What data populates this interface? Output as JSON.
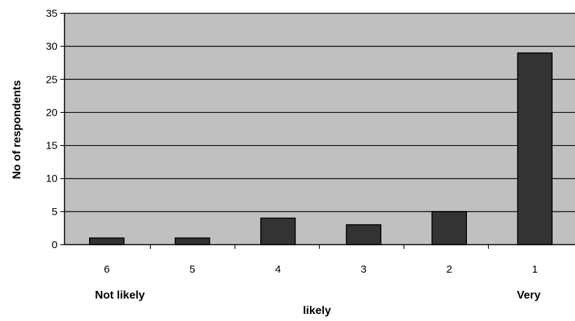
{
  "chart_data": {
    "type": "bar",
    "categories": [
      "6",
      "5",
      "4",
      "3",
      "2",
      "1"
    ],
    "values": [
      1,
      1,
      4,
      3,
      5,
      29
    ],
    "title": "",
    "xlabel": "likely",
    "ylabel": "No of respondents",
    "ylim": [
      0,
      35
    ],
    "yticks": [
      0,
      5,
      10,
      15,
      20,
      25,
      30,
      35
    ],
    "grid": true,
    "legend": "none",
    "end_labels": {
      "left": "Not likely",
      "right": "Very"
    },
    "colors": {
      "plot_background": "#c0c0c0",
      "bar_fill": "#333333",
      "bar_stroke": "#000000",
      "grid": "#000000"
    }
  }
}
